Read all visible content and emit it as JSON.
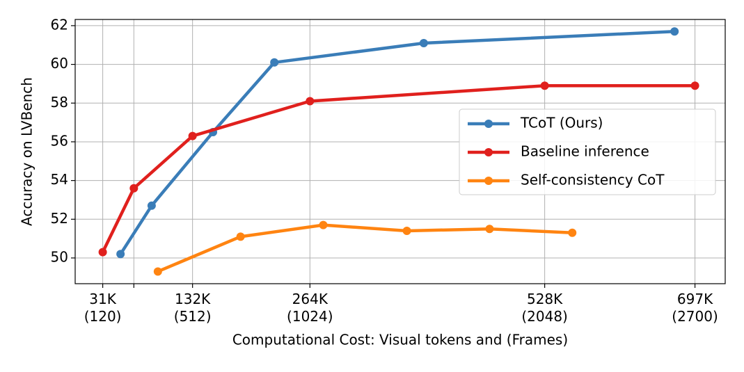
{
  "chart_data": {
    "type": "line",
    "x_label": "Computational Cost: Visual tokens and (Frames)",
    "y_label": "Accuracy on LVBench",
    "xlim": [
      0,
      731000
    ],
    "ylim": [
      48.67,
      62.32
    ],
    "xticks": [
      {
        "value": 31000,
        "label": "31K\n(120)"
      },
      {
        "value": 66000,
        "label": null
      },
      {
        "value": 132000,
        "label": "132K\n(512)"
      },
      {
        "value": 264000,
        "label": "264K\n(1024)"
      },
      {
        "value": 528000,
        "label": "528K\n(2048)"
      },
      {
        "value": 697000,
        "label": "697K\n(2700)"
      }
    ],
    "yticks": [
      50,
      52,
      54,
      56,
      58,
      60,
      62
    ],
    "grid": true,
    "legend": "right",
    "series": [
      {
        "name": "TCoT (Ours)",
        "color": "#3a7db8",
        "x": [
          51000,
          86000,
          155000,
          224000,
          392000,
          674000
        ],
        "values": [
          50.2,
          52.7,
          56.5,
          60.1,
          61.1,
          61.7
        ]
      },
      {
        "name": "Baseline inference",
        "color": "#e0201d",
        "x": [
          31000,
          66000,
          132000,
          264000,
          528000,
          697000
        ],
        "values": [
          50.3,
          53.6,
          56.3,
          58.1,
          58.9,
          58.9
        ]
      },
      {
        "name": "Self-consistency CoT",
        "color": "#ff8411",
        "x": [
          93000,
          186000,
          279000,
          373000,
          466000,
          559000
        ],
        "values": [
          49.3,
          51.1,
          51.7,
          51.4,
          51.5,
          51.3
        ]
      }
    ]
  }
}
